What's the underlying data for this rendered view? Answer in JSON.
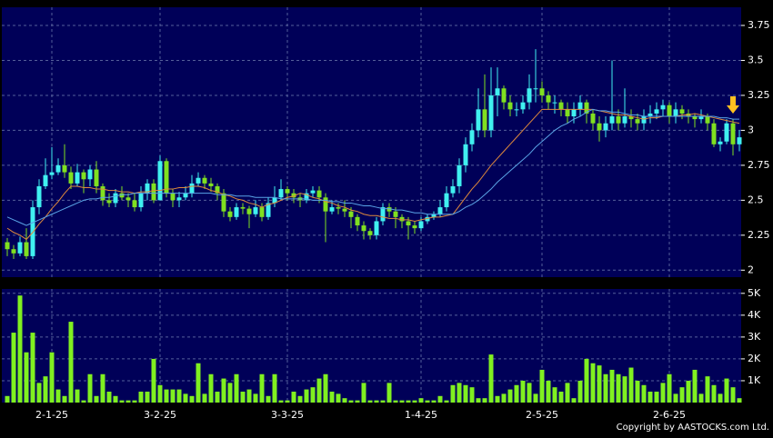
{
  "chart_data": [
    {
      "type": "candlestick",
      "up_color": "#40f0f0",
      "down_color": "#80e020",
      "grid": true,
      "ylim": [
        1.95,
        3.88
      ],
      "yticks": [
        2,
        2.25,
        2.5,
        2.75,
        3,
        3.25,
        3.5,
        3.75
      ],
      "open": [
        2.2,
        2.15,
        2.12,
        2.2,
        2.1,
        2.45,
        2.6,
        2.68,
        2.7,
        2.75,
        2.7,
        2.62,
        2.7,
        2.65,
        2.72,
        2.6,
        2.5,
        2.48,
        2.55,
        2.52,
        2.5,
        2.45,
        2.55,
        2.62,
        2.5,
        2.78,
        2.55,
        2.5,
        2.52,
        2.55,
        2.62,
        2.66,
        2.62,
        2.6,
        2.55,
        2.42,
        2.38,
        2.45,
        2.44,
        2.4,
        2.45,
        2.38,
        2.48,
        2.52,
        2.58,
        2.55,
        2.52,
        2.5,
        2.55,
        2.57,
        2.52,
        2.42,
        2.45,
        2.44,
        2.42,
        2.38,
        2.32,
        2.28,
        2.25,
        2.35,
        2.45,
        2.42,
        2.38,
        2.35,
        2.32,
        2.3,
        2.35,
        2.38,
        2.4,
        2.45,
        2.55,
        2.6,
        2.75,
        2.9,
        3.0,
        3.15,
        3.0,
        3.25,
        3.3,
        3.2,
        3.15,
        3.15,
        3.2,
        3.3,
        3.3,
        3.25,
        3.2,
        3.2,
        3.15,
        3.1,
        3.15,
        3.2,
        3.12,
        3.05,
        3.0,
        3.05,
        3.1,
        3.05,
        3.1,
        3.08,
        3.05,
        3.1,
        3.12,
        3.15,
        3.18,
        3.1,
        3.15,
        3.12,
        3.1,
        3.08,
        3.1,
        3.05,
        2.9,
        2.92,
        3.05,
        2.9
      ],
      "high": [
        2.23,
        2.18,
        2.24,
        2.3,
        2.5,
        2.65,
        2.8,
        2.88,
        2.8,
        2.9,
        2.74,
        2.76,
        2.72,
        2.75,
        2.78,
        2.62,
        2.55,
        2.58,
        2.6,
        2.55,
        2.55,
        2.6,
        2.65,
        2.65,
        2.82,
        2.8,
        2.58,
        2.56,
        2.6,
        2.68,
        2.7,
        2.68,
        2.66,
        2.62,
        2.58,
        2.45,
        2.48,
        2.48,
        2.46,
        2.5,
        2.48,
        2.52,
        2.6,
        2.65,
        2.6,
        2.58,
        2.55,
        2.58,
        2.6,
        2.6,
        2.55,
        2.5,
        2.48,
        2.5,
        2.45,
        2.4,
        2.35,
        2.3,
        2.38,
        2.48,
        2.48,
        2.45,
        2.4,
        2.38,
        2.35,
        2.38,
        2.4,
        2.42,
        2.5,
        2.6,
        2.65,
        2.8,
        2.95,
        3.05,
        3.3,
        3.4,
        3.45,
        3.45,
        3.32,
        3.25,
        3.2,
        3.25,
        3.4,
        3.58,
        3.35,
        3.28,
        3.25,
        3.22,
        3.2,
        3.2,
        3.25,
        3.22,
        3.15,
        3.1,
        3.1,
        3.5,
        3.15,
        3.3,
        3.15,
        3.12,
        3.15,
        3.18,
        3.2,
        3.22,
        3.2,
        3.2,
        3.18,
        3.15,
        3.12,
        3.15,
        3.12,
        3.08,
        2.95,
        3.08,
        3.08,
        3.0
      ],
      "low": [
        2.1,
        2.08,
        2.1,
        2.08,
        2.08,
        2.4,
        2.58,
        2.65,
        2.68,
        2.66,
        2.58,
        2.6,
        2.55,
        2.6,
        2.55,
        2.46,
        2.45,
        2.45,
        2.5,
        2.45,
        2.42,
        2.42,
        2.5,
        2.48,
        2.5,
        2.52,
        2.45,
        2.45,
        2.5,
        2.52,
        2.6,
        2.58,
        2.56,
        2.5,
        2.38,
        2.35,
        2.36,
        2.4,
        2.3,
        2.38,
        2.35,
        2.36,
        2.45,
        2.5,
        2.5,
        2.48,
        2.45,
        2.48,
        2.52,
        2.48,
        2.2,
        2.4,
        2.4,
        2.38,
        2.3,
        2.28,
        2.22,
        2.22,
        2.22,
        2.32,
        2.38,
        2.3,
        2.3,
        2.22,
        2.26,
        2.28,
        2.33,
        2.36,
        2.38,
        2.42,
        2.52,
        2.55,
        2.7,
        2.85,
        2.95,
        2.95,
        2.95,
        3.1,
        3.15,
        3.1,
        3.1,
        3.12,
        3.15,
        3.2,
        3.2,
        3.15,
        3.12,
        3.1,
        3.05,
        3.05,
        3.1,
        3.05,
        3.0,
        2.92,
        2.95,
        3.0,
        3.0,
        3.02,
        3.02,
        3.0,
        3.0,
        3.05,
        3.08,
        3.1,
        3.05,
        3.05,
        3.08,
        3.05,
        3.02,
        3.05,
        3.0,
        2.88,
        2.85,
        2.9,
        2.82,
        2.85
      ],
      "close": [
        2.15,
        2.12,
        2.2,
        2.1,
        2.45,
        2.6,
        2.68,
        2.7,
        2.75,
        2.7,
        2.62,
        2.7,
        2.65,
        2.72,
        2.6,
        2.5,
        2.48,
        2.55,
        2.52,
        2.5,
        2.45,
        2.55,
        2.62,
        2.5,
        2.78,
        2.55,
        2.5,
        2.52,
        2.55,
        2.62,
        2.66,
        2.62,
        2.6,
        2.55,
        2.42,
        2.38,
        2.45,
        2.44,
        2.4,
        2.45,
        2.38,
        2.48,
        2.52,
        2.58,
        2.55,
        2.52,
        2.5,
        2.55,
        2.57,
        2.52,
        2.42,
        2.45,
        2.44,
        2.42,
        2.38,
        2.32,
        2.28,
        2.25,
        2.35,
        2.45,
        2.42,
        2.38,
        2.35,
        2.32,
        2.3,
        2.35,
        2.38,
        2.4,
        2.45,
        2.55,
        2.6,
        2.75,
        2.9,
        3.0,
        3.15,
        3.0,
        3.25,
        3.3,
        3.2,
        3.15,
        3.15,
        3.2,
        3.3,
        3.3,
        3.25,
        3.2,
        3.2,
        3.15,
        3.1,
        3.15,
        3.2,
        3.12,
        3.05,
        3.0,
        3.05,
        3.1,
        3.05,
        3.1,
        3.08,
        3.05,
        3.1,
        3.12,
        3.15,
        3.18,
        3.1,
        3.15,
        3.12,
        3.1,
        3.08,
        3.1,
        3.05,
        2.9,
        2.92,
        3.05,
        2.9,
        2.95
      ],
      "series": [
        {
          "color": "#e08a3c",
          "values": [
            2.3,
            2.27,
            2.25,
            2.22,
            2.27,
            2.33,
            2.38,
            2.44,
            2.49,
            2.55,
            2.6,
            2.6,
            2.59,
            2.59,
            2.58,
            2.58,
            2.57,
            2.57,
            2.56,
            2.56,
            2.55,
            2.56,
            2.56,
            2.57,
            2.57,
            2.58,
            2.58,
            2.59,
            2.59,
            2.6,
            2.6,
            2.59,
            2.57,
            2.56,
            2.54,
            2.53,
            2.51,
            2.5,
            2.48,
            2.47,
            2.45,
            2.47,
            2.48,
            2.5,
            2.52,
            2.53,
            2.55,
            2.54,
            2.52,
            2.51,
            2.49,
            2.48,
            2.46,
            2.45,
            2.43,
            2.42,
            2.4,
            2.39,
            2.39,
            2.38,
            2.37,
            2.37,
            2.36,
            2.36,
            2.35,
            2.36,
            2.37,
            2.38,
            2.38,
            2.39,
            2.4,
            2.46,
            2.52,
            2.58,
            2.63,
            2.69,
            2.75,
            2.8,
            2.85,
            2.9,
            2.95,
            3.0,
            3.05,
            3.1,
            3.15,
            3.15,
            3.15,
            3.15,
            3.15,
            3.15,
            3.15,
            3.15,
            3.15,
            3.14,
            3.13,
            3.12,
            3.11,
            3.11,
            3.1,
            3.09,
            3.08,
            3.09,
            3.09,
            3.1,
            3.1,
            3.1,
            3.11,
            3.11,
            3.12,
            3.11,
            3.1,
            3.09,
            3.08,
            3.07,
            3.06,
            3.05
          ]
        },
        {
          "color": "#5aa4e6",
          "values": [
            2.38,
            2.36,
            2.34,
            2.32,
            2.34,
            2.36,
            2.38,
            2.4,
            2.42,
            2.44,
            2.46,
            2.48,
            2.5,
            2.51,
            2.51,
            2.52,
            2.52,
            2.53,
            2.54,
            2.54,
            2.55,
            2.55,
            2.55,
            2.55,
            2.55,
            2.55,
            2.55,
            2.55,
            2.55,
            2.55,
            2.55,
            2.55,
            2.55,
            2.54,
            2.54,
            2.54,
            2.53,
            2.53,
            2.53,
            2.52,
            2.52,
            2.52,
            2.52,
            2.51,
            2.51,
            2.51,
            2.51,
            2.51,
            2.5,
            2.5,
            2.5,
            2.49,
            2.49,
            2.48,
            2.48,
            2.47,
            2.46,
            2.46,
            2.45,
            2.44,
            2.44,
            2.43,
            2.43,
            2.42,
            2.41,
            2.41,
            2.4,
            2.4,
            2.4,
            2.4,
            2.4,
            2.42,
            2.45,
            2.47,
            2.5,
            2.54,
            2.58,
            2.63,
            2.67,
            2.71,
            2.75,
            2.79,
            2.83,
            2.88,
            2.92,
            2.96,
            3.0,
            3.03,
            3.05,
            3.08,
            3.1,
            3.13,
            3.15,
            3.14,
            3.14,
            3.13,
            3.13,
            3.12,
            3.11,
            3.11,
            3.1,
            3.1,
            3.1,
            3.1,
            3.1,
            3.1,
            3.1,
            3.1,
            3.1,
            3.1,
            3.1,
            3.1,
            3.09,
            3.09,
            3.08,
            3.08
          ]
        }
      ]
    },
    {
      "type": "bar",
      "color": "#80f020",
      "grid": true,
      "ylim": [
        0,
        5200
      ],
      "yticks": [
        {
          "value": 1000,
          "label": "1K"
        },
        {
          "value": 2000,
          "label": "2K"
        },
        {
          "value": 3000,
          "label": "3K"
        },
        {
          "value": 4000,
          "label": "4K"
        },
        {
          "value": 5000,
          "label": "5K"
        }
      ],
      "categories": [
        null,
        null,
        null,
        null,
        null,
        null,
        null,
        "2-1-25",
        null,
        null,
        null,
        null,
        null,
        null,
        null,
        null,
        null,
        null,
        null,
        null,
        null,
        null,
        null,
        null,
        "3-2-25",
        null,
        null,
        null,
        null,
        null,
        null,
        null,
        null,
        null,
        null,
        null,
        null,
        null,
        null,
        null,
        null,
        null,
        null,
        null,
        "3-3-25",
        null,
        null,
        null,
        null,
        null,
        null,
        null,
        null,
        null,
        null,
        null,
        null,
        null,
        null,
        null,
        null,
        null,
        null,
        null,
        null,
        "1-4-25",
        null,
        null,
        null,
        null,
        null,
        null,
        null,
        null,
        null,
        null,
        null,
        null,
        null,
        null,
        null,
        null,
        null,
        null,
        "2-5-25",
        null,
        null,
        null,
        null,
        null,
        null,
        null,
        null,
        null,
        null,
        null,
        null,
        null,
        null,
        null,
        null,
        null,
        null,
        null,
        "2-6-25",
        null,
        null,
        null,
        null,
        null,
        null,
        null,
        null,
        null,
        null,
        null
      ],
      "values": [
        300,
        3200,
        4900,
        2300,
        3200,
        900,
        1200,
        2300,
        600,
        300,
        3700,
        600,
        100,
        1300,
        300,
        1300,
        500,
        300,
        100,
        100,
        100,
        500,
        500,
        2000,
        800,
        600,
        600,
        600,
        400,
        300,
        1800,
        400,
        1300,
        500,
        1100,
        900,
        1300,
        500,
        600,
        400,
        1300,
        300,
        1300,
        100,
        100,
        500,
        300,
        600,
        700,
        1100,
        1300,
        500,
        400,
        200,
        100,
        100,
        900,
        100,
        100,
        100,
        900,
        100,
        100,
        100,
        100,
        200,
        100,
        100,
        300,
        100,
        800,
        900,
        800,
        700,
        200,
        200,
        2200,
        300,
        400,
        600,
        800,
        1000,
        900,
        400,
        1500,
        1000,
        700,
        500,
        900,
        200,
        1000,
        2000,
        1800,
        1700,
        1300,
        1500,
        1300,
        1200,
        1600,
        1000,
        800,
        500,
        500,
        900,
        1300,
        400,
        700,
        1000,
        1500,
        400,
        1200,
        800,
        400,
        1100,
        700,
        200
      ]
    }
  ],
  "copyright": "Copyright by AASTOCKS.com Ltd."
}
